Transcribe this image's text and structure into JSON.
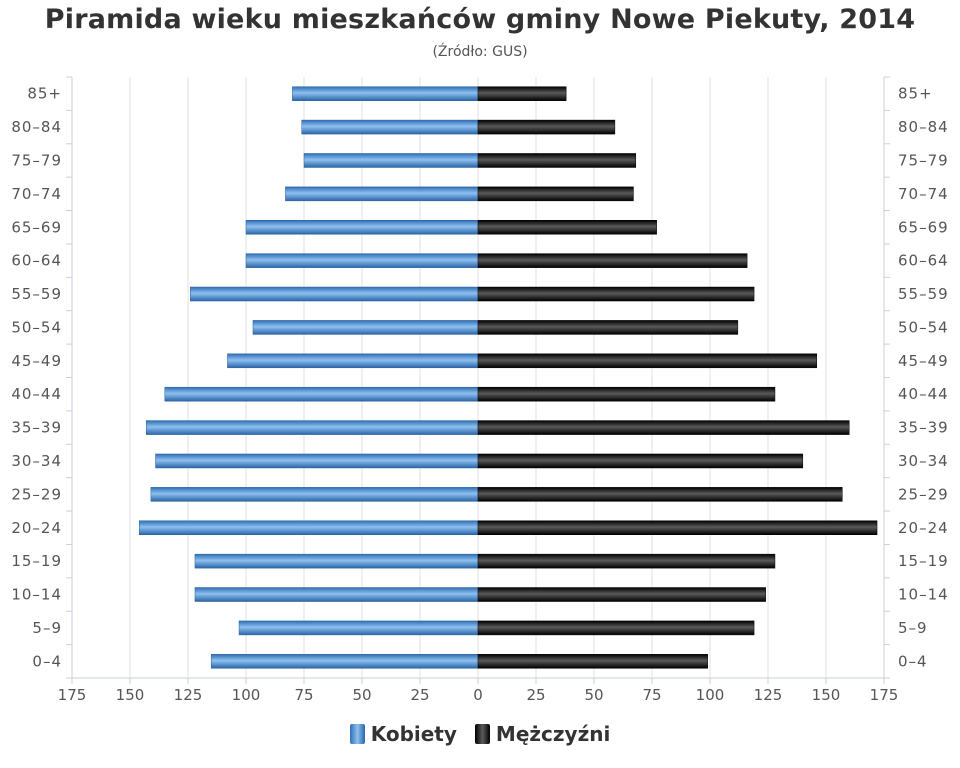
{
  "chart_data": {
    "type": "bar",
    "orientation": "horizontal",
    "title": "Piramida wieku mieszkańców gminy Nowe Piekuty, 2014",
    "subtitle": "(Źródło: GUS)",
    "categories": [
      "0–4",
      "5–9",
      "10–14",
      "15–19",
      "20–24",
      "25–29",
      "30–34",
      "35–39",
      "40–44",
      "45–49",
      "50–54",
      "55–59",
      "60–64",
      "65–69",
      "70–74",
      "75–79",
      "80–84",
      "85+"
    ],
    "series": [
      {
        "name": "Kobiety",
        "color": "#4a8cd4",
        "side": "left",
        "values": [
          115,
          103,
          122,
          122,
          146,
          141,
          139,
          143,
          135,
          108,
          97,
          124,
          100,
          100,
          83,
          75,
          76,
          80
        ]
      },
      {
        "name": "Mężczyźni",
        "color": "#1a1a1a",
        "side": "right",
        "values": [
          99,
          119,
          124,
          128,
          172,
          157,
          140,
          160,
          128,
          146,
          112,
          119,
          116,
          77,
          67,
          68,
          59,
          38
        ]
      }
    ],
    "xlim": [
      -175,
      175
    ],
    "x_ticks": [
      "175",
      "150",
      "125",
      "100",
      "75",
      "50",
      "25",
      "0",
      "25",
      "50",
      "75",
      "100",
      "125",
      "150",
      "175"
    ],
    "grid": true,
    "legend_position": "bottom"
  }
}
